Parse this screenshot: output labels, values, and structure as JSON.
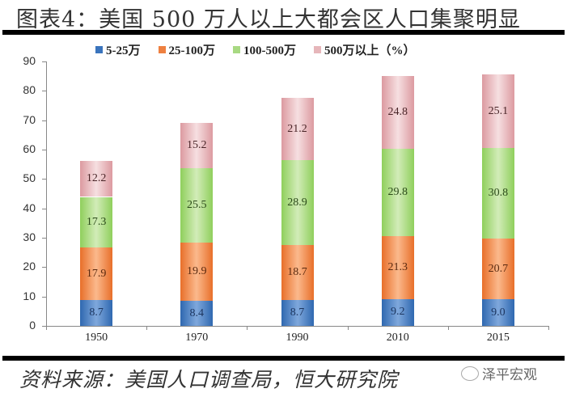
{
  "header": {
    "title": "图表4：美国 500 万人以上大都会区人口集聚明显"
  },
  "footer": {
    "source": "资料来源：美国人口调查局，恒大研究院",
    "watermark": "泽平宏观"
  },
  "legend": [
    {
      "label": "5-25万",
      "color": "#3a74bd"
    },
    {
      "label": "25-100万",
      "color": "#ee8040"
    },
    {
      "label": "100-500万",
      "color": "#a8d982"
    },
    {
      "label": "500万以上（%）",
      "color": "#e6b6ba"
    }
  ],
  "yticks": [
    "0",
    "10",
    "20",
    "30",
    "40",
    "50",
    "60",
    "70",
    "80",
    "90"
  ],
  "chart_data": {
    "type": "bar",
    "stacked": true,
    "title": "图表4：美国 500 万人以上大都会区人口集聚明显",
    "xlabel": "",
    "ylabel": "",
    "ylim": [
      0,
      90
    ],
    "yticks": [
      0,
      10,
      20,
      30,
      40,
      50,
      60,
      70,
      80,
      90
    ],
    "grid": false,
    "legend_position": "top",
    "categories": [
      "1950",
      "1970",
      "1990",
      "2010",
      "2015"
    ],
    "series": [
      {
        "name": "5-25万",
        "values": [
          8.7,
          8.4,
          8.7,
          9.2,
          9.0
        ],
        "labels": [
          "8.7",
          "8.4",
          "8.7",
          "9.2",
          "9.0"
        ]
      },
      {
        "name": "25-100万",
        "values": [
          17.9,
          19.9,
          18.7,
          21.3,
          20.7
        ],
        "labels": [
          "17.9",
          "19.9",
          "18.7",
          "21.3",
          "20.7"
        ]
      },
      {
        "name": "100-500万",
        "values": [
          17.3,
          25.5,
          28.9,
          29.8,
          30.8
        ],
        "labels": [
          "17.3",
          "25.5",
          "28.9",
          "29.8",
          "30.8"
        ]
      },
      {
        "name": "500万以上（%）",
        "values": [
          12.2,
          15.2,
          21.2,
          24.8,
          25.1
        ],
        "labels": [
          "12.2",
          "15.2",
          "21.2",
          "24.8",
          "25.1"
        ]
      }
    ],
    "source": "资料来源：美国人口调查局，恒大研究院"
  }
}
